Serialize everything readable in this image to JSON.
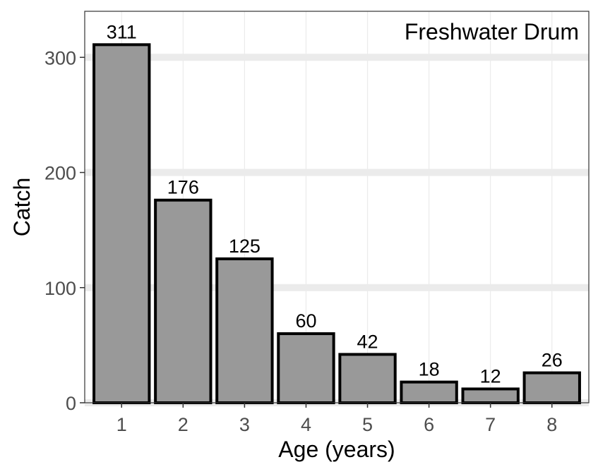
{
  "chart_data": {
    "type": "bar",
    "categories": [
      "1",
      "2",
      "3",
      "4",
      "5",
      "6",
      "7",
      "8"
    ],
    "values": [
      311,
      176,
      125,
      60,
      42,
      18,
      12,
      26
    ],
    "data_labels": [
      "311",
      "176",
      "125",
      "60",
      "42",
      "18",
      "12",
      "26"
    ],
    "xlabel": "Age (years)",
    "ylabel": "Catch",
    "annotation": "Freshwater Drum",
    "annotation_position": "top-right",
    "ylim": [
      0,
      340
    ],
    "yticks": [
      0,
      100,
      200,
      300
    ],
    "ytick_labels": [
      "0",
      "100",
      "200",
      "300"
    ],
    "grid": true,
    "legend": "none",
    "colors": {
      "bar_fill": "#999999",
      "bar_outline": "#000000",
      "grid_major": "#ebebeb",
      "panel_border": "#333333",
      "tick_text": "#4d4d4d"
    }
  }
}
